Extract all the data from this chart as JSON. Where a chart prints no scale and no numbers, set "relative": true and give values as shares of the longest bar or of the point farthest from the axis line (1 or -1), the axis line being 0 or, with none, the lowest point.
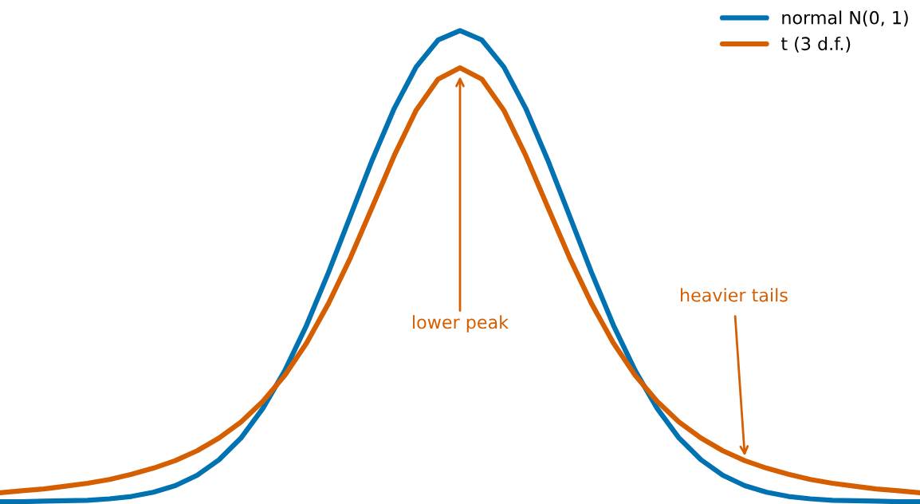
{
  "chart_data": {
    "type": "line",
    "relative": true,
    "categories": [
      null,
      null,
      null,
      null,
      null,
      null,
      null,
      null,
      null,
      null,
      null,
      null,
      null,
      null,
      null,
      null,
      null,
      null,
      null,
      null,
      null,
      null,
      null,
      null,
      null,
      null,
      null,
      null,
      null,
      null,
      null,
      null,
      null,
      null,
      null,
      null,
      null,
      null,
      null,
      null,
      null,
      null,
      null
    ],
    "series": [
      {
        "name": "normal N(0, 1)",
        "color": "#0072b2",
        "values": [
          0.0,
          0.0,
          0.001,
          0.002,
          0.003,
          0.006,
          0.011,
          0.02,
          0.034,
          0.056,
          0.089,
          0.135,
          0.198,
          0.278,
          0.375,
          0.487,
          0.607,
          0.726,
          0.835,
          0.923,
          0.98,
          1.0,
          0.98,
          0.923,
          0.835,
          0.726,
          0.607,
          0.487,
          0.375,
          0.278,
          0.198,
          0.135,
          0.089,
          0.056,
          0.034,
          0.02,
          0.011,
          0.006,
          0.003,
          0.002,
          0.001,
          0.0,
          0.0
        ]
      },
      {
        "name": "t (3 d.f.)",
        "color": "#d55e00",
        "values": [
          0.019,
          0.023,
          0.027,
          0.033,
          0.039,
          0.047,
          0.058,
          0.071,
          0.087,
          0.108,
          0.135,
          0.169,
          0.213,
          0.268,
          0.337,
          0.421,
          0.518,
          0.626,
          0.735,
          0.831,
          0.897,
          0.921,
          0.897,
          0.831,
          0.735,
          0.626,
          0.518,
          0.421,
          0.337,
          0.268,
          0.213,
          0.169,
          0.135,
          0.108,
          0.087,
          0.071,
          0.058,
          0.047,
          0.039,
          0.033,
          0.027,
          0.023,
          0.019
        ]
      }
    ],
    "annotations": [
      "lower peak",
      "heavier tails"
    ],
    "legend": "top right",
    "grid": false,
    "marker": "none",
    "line_style": "solid"
  }
}
